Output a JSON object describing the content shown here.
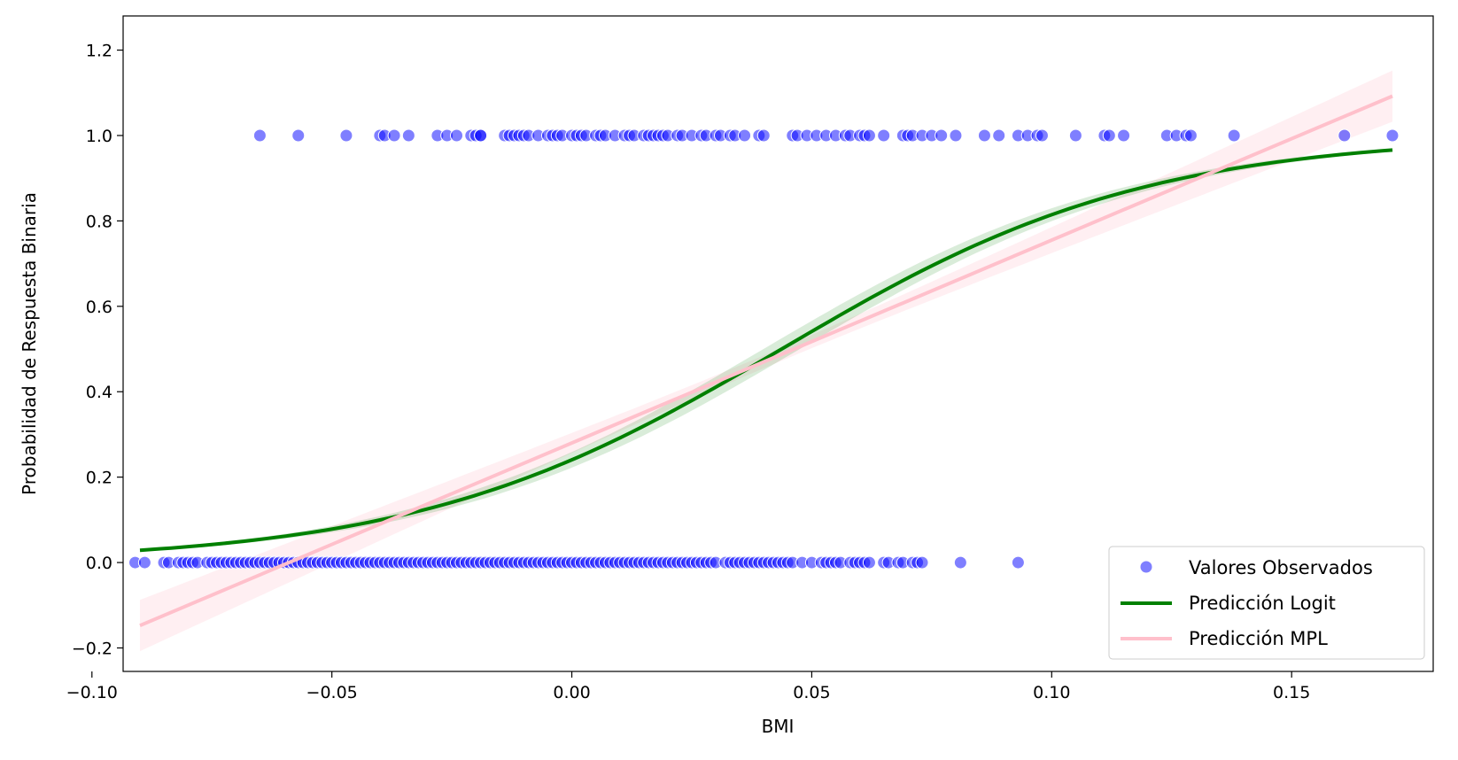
{
  "chart_data": {
    "type": "scatter",
    "xlabel": "BMI",
    "ylabel": "Probabilidad de Respuesta Binaria",
    "xlim": [
      -0.0935,
      0.1795
    ],
    "ylim": [
      -0.255,
      1.28
    ],
    "x_ticks": [
      -0.1,
      -0.05,
      0.0,
      0.05,
      0.1,
      0.15
    ],
    "x_tick_labels": [
      "−0.10",
      "−0.05",
      "0.00",
      "0.05",
      "0.10",
      "0.15"
    ],
    "y_ticks": [
      -0.2,
      0.0,
      0.2,
      0.4,
      0.6,
      0.8,
      1.0,
      1.2
    ],
    "y_tick_labels": [
      "−0.2",
      "0.0",
      "0.2",
      "0.4",
      "0.6",
      "0.8",
      "1.0",
      "1.2"
    ],
    "grid": false,
    "legend_position": "bottom-right",
    "series": [
      {
        "name": "Valores Observados",
        "kind": "scatter",
        "color": "#0000ff",
        "opacity": 0.5,
        "points_y1_x": [
          -0.065,
          -0.057,
          -0.047,
          -0.04,
          -0.039,
          -0.037,
          -0.034,
          -0.028,
          -0.026,
          -0.024,
          -0.021,
          -0.02,
          -0.019,
          -0.019,
          -0.014,
          -0.013,
          -0.012,
          -0.011,
          -0.01,
          -0.009,
          -0.007,
          -0.005,
          -0.004,
          -0.003,
          -0.002,
          0.0,
          0.001,
          0.002,
          0.003,
          0.005,
          0.006,
          0.007,
          0.009,
          0.011,
          0.012,
          0.013,
          0.015,
          0.016,
          0.017,
          0.018,
          0.019,
          0.02,
          0.022,
          0.023,
          0.025,
          0.027,
          0.028,
          0.03,
          0.031,
          0.033,
          0.034,
          0.036,
          0.039,
          0.04,
          0.046,
          0.047,
          0.049,
          0.051,
          0.053,
          0.055,
          0.057,
          0.058,
          0.06,
          0.061,
          0.062,
          0.065,
          0.069,
          0.07,
          0.071,
          0.073,
          0.075,
          0.077,
          0.08,
          0.086,
          0.089,
          0.093,
          0.095,
          0.097,
          0.098,
          0.105,
          0.111,
          0.112,
          0.115,
          0.124,
          0.126,
          0.128,
          0.129,
          0.138,
          0.161,
          0.171
        ],
        "points_y0_x": [
          -0.091,
          -0.089,
          -0.085,
          -0.084,
          -0.082,
          -0.081,
          -0.08,
          -0.079,
          -0.078,
          -0.076,
          -0.075,
          -0.074,
          -0.073,
          -0.072,
          -0.071,
          -0.07,
          -0.069,
          -0.068,
          -0.067,
          -0.066,
          -0.065,
          -0.064,
          -0.063,
          -0.062,
          -0.061,
          -0.06,
          -0.059,
          -0.058,
          -0.057,
          -0.056,
          -0.055,
          -0.054,
          -0.053,
          -0.052,
          -0.051,
          -0.05,
          -0.049,
          -0.048,
          -0.047,
          -0.046,
          -0.045,
          -0.044,
          -0.043,
          -0.042,
          -0.041,
          -0.04,
          -0.039,
          -0.038,
          -0.037,
          -0.036,
          -0.035,
          -0.034,
          -0.033,
          -0.032,
          -0.031,
          -0.03,
          -0.029,
          -0.028,
          -0.027,
          -0.026,
          -0.025,
          -0.024,
          -0.023,
          -0.022,
          -0.021,
          -0.02,
          -0.019,
          -0.018,
          -0.017,
          -0.016,
          -0.015,
          -0.014,
          -0.013,
          -0.012,
          -0.011,
          -0.01,
          -0.009,
          -0.008,
          -0.007,
          -0.006,
          -0.005,
          -0.004,
          -0.003,
          -0.002,
          -0.001,
          0.0,
          0.001,
          0.002,
          0.003,
          0.004,
          0.005,
          0.006,
          0.007,
          0.008,
          0.009,
          0.01,
          0.011,
          0.012,
          0.013,
          0.014,
          0.015,
          0.016,
          0.017,
          0.018,
          0.019,
          0.02,
          0.021,
          0.022,
          0.023,
          0.024,
          0.025,
          0.026,
          0.027,
          0.028,
          0.029,
          0.03,
          0.032,
          0.033,
          0.034,
          0.035,
          0.036,
          0.037,
          0.038,
          0.039,
          0.04,
          0.041,
          0.042,
          0.043,
          0.044,
          0.045,
          0.046,
          0.048,
          0.05,
          0.052,
          0.053,
          0.054,
          0.055,
          0.056,
          0.058,
          0.059,
          0.06,
          0.061,
          0.062,
          0.065,
          0.066,
          0.068,
          0.069,
          0.071,
          0.072,
          0.073,
          0.081,
          0.093
        ]
      },
      {
        "name": "Predicción Logit",
        "kind": "line",
        "color": "#008000",
        "model": "logistic",
        "x_range": [
          -0.09,
          0.171
        ],
        "intercept": -1.15,
        "slope": 26.3,
        "band_halfwidth_max": 0.025
      },
      {
        "name": "Predicción MPL",
        "kind": "line",
        "color": "#ffc0cb",
        "model": "linear",
        "x_range": [
          -0.09,
          0.171
        ],
        "intercept": 0.28,
        "slope": 4.75,
        "band_halfwidth_at_mean": 0.015,
        "band_halfwidth_at_ends": 0.06
      }
    ]
  }
}
